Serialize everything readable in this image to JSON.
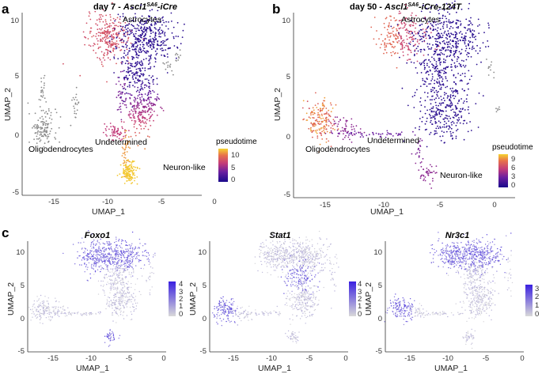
{
  "panels": [
    {
      "letter": "a",
      "title_prefix": "day 7 - ",
      "title_gene": "Ascl1",
      "title_sup": "SA6",
      "title_suffix": "-iCre",
      "xlabel": "UMAP_1",
      "ylabel": "UMAP_2",
      "xticks": [
        "-15",
        "-10",
        "-5",
        "0"
      ],
      "yticks": [
        "-5",
        "0",
        "5",
        "10"
      ],
      "annotations": [
        "Astrocytes",
        "Oligodendrocytes",
        "Undetermined",
        "Neuron-like"
      ],
      "legend_title": "pseudotime",
      "legend_ticks": [
        "10",
        "5",
        "0"
      ],
      "colors": [
        "#1a0a8c",
        "#6a1fa0",
        "#c23b7a",
        "#e8714a",
        "#f5d430"
      ]
    },
    {
      "letter": "b",
      "title_prefix": "day 50 - ",
      "title_gene": "Ascl1",
      "title_sup": "SA6",
      "title_suffix": "-iCre-124T",
      "xlabel": "UMAP_1",
      "ylabel": "UMAP_2",
      "xticks": [
        "-15",
        "-10",
        "-5",
        "0"
      ],
      "yticks": [
        "-5",
        "0",
        "5",
        "10"
      ],
      "annotations": [
        "Astrocytes",
        "Oligodendrocytes",
        "Undetermined",
        "Neuron-like"
      ],
      "legend_title": "pseudotime",
      "legend_ticks": [
        "9",
        "6",
        "3",
        "0"
      ],
      "colors": [
        "#1a0a8c",
        "#6a1fa0",
        "#c23b7a",
        "#e8714a",
        "#f5d430"
      ]
    }
  ],
  "panel_c": {
    "letter": "c",
    "xlabel": "UMAP_1",
    "ylabel": "UMAP_2",
    "xticks": [
      "-15",
      "-10",
      "-5",
      "0"
    ],
    "yticks": [
      "-5",
      "0",
      "5",
      "10"
    ],
    "low_color": "#d9d9d9",
    "high_color": "#3a20e0",
    "features": [
      {
        "gene": "Foxo1",
        "legend_ticks": [
          "4",
          "3",
          "2",
          "1",
          "0"
        ]
      },
      {
        "gene": "Stat1",
        "legend_ticks": [
          "4",
          "3",
          "2",
          "1",
          "0"
        ]
      },
      {
        "gene": "Nr3c1",
        "legend_ticks": [
          "3",
          "2",
          "1",
          "0"
        ]
      }
    ]
  },
  "chart_data": [
    {
      "type": "scatter",
      "title": "day 7 - Ascl1SA6-iCre",
      "xlabel": "UMAP_1",
      "ylabel": "UMAP_2",
      "xlim": [
        -17.5,
        2.5
      ],
      "ylim": [
        -5.5,
        11
      ],
      "color_by": "pseudotime",
      "color_range": [
        0,
        13
      ],
      "clusters": [
        {
          "name": "Astrocytes",
          "label_x": -7.5,
          "label_y": 9.6
        },
        {
          "name": "Oligodendrocytes",
          "label_x": -16.2,
          "label_y": -1.0
        },
        {
          "name": "Undetermined",
          "label_x": -10.6,
          "label_y": 0.2
        },
        {
          "name": "Neuron-like",
          "label_x": -5.2,
          "label_y": -2.7
        }
      ]
    },
    {
      "type": "scatter",
      "title": "day 50 - Ascl1SA6-iCre-124T",
      "xlabel": "UMAP_1",
      "ylabel": "UMAP_2",
      "xlim": [
        -17.5,
        2.5
      ],
      "ylim": [
        -5.5,
        11
      ],
      "color_by": "pseudotime",
      "color_range": [
        0,
        10
      ],
      "clusters": [
        {
          "name": "Astrocytes",
          "label_x": -7.2,
          "label_y": 9.6
        },
        {
          "name": "Oligodendrocytes",
          "label_x": -15.4,
          "label_y": -1.0
        },
        {
          "name": "Undetermined",
          "label_x": -10.6,
          "label_y": 0.0
        },
        {
          "name": "Neuron-like",
          "label_x": -5.2,
          "label_y": -3.7
        }
      ]
    },
    {
      "type": "scatter",
      "title": "Foxo1",
      "xlabel": "UMAP_1",
      "ylabel": "UMAP_2",
      "xlim": [
        -17.5,
        2.5
      ],
      "ylim": [
        -5.5,
        11
      ],
      "color_range": [
        0,
        4
      ]
    },
    {
      "type": "scatter",
      "title": "Stat1",
      "xlabel": "UMAP_1",
      "ylabel": "UMAP_2",
      "xlim": [
        -17.5,
        2.5
      ],
      "ylim": [
        -5.5,
        11
      ],
      "color_range": [
        0,
        4
      ]
    },
    {
      "type": "scatter",
      "title": "Nr3c1",
      "xlabel": "UMAP_1",
      "ylabel": "UMAP_2",
      "xlim": [
        -17.5,
        2.5
      ],
      "ylim": [
        -5.5,
        11
      ],
      "color_range": [
        0,
        3
      ]
    }
  ]
}
